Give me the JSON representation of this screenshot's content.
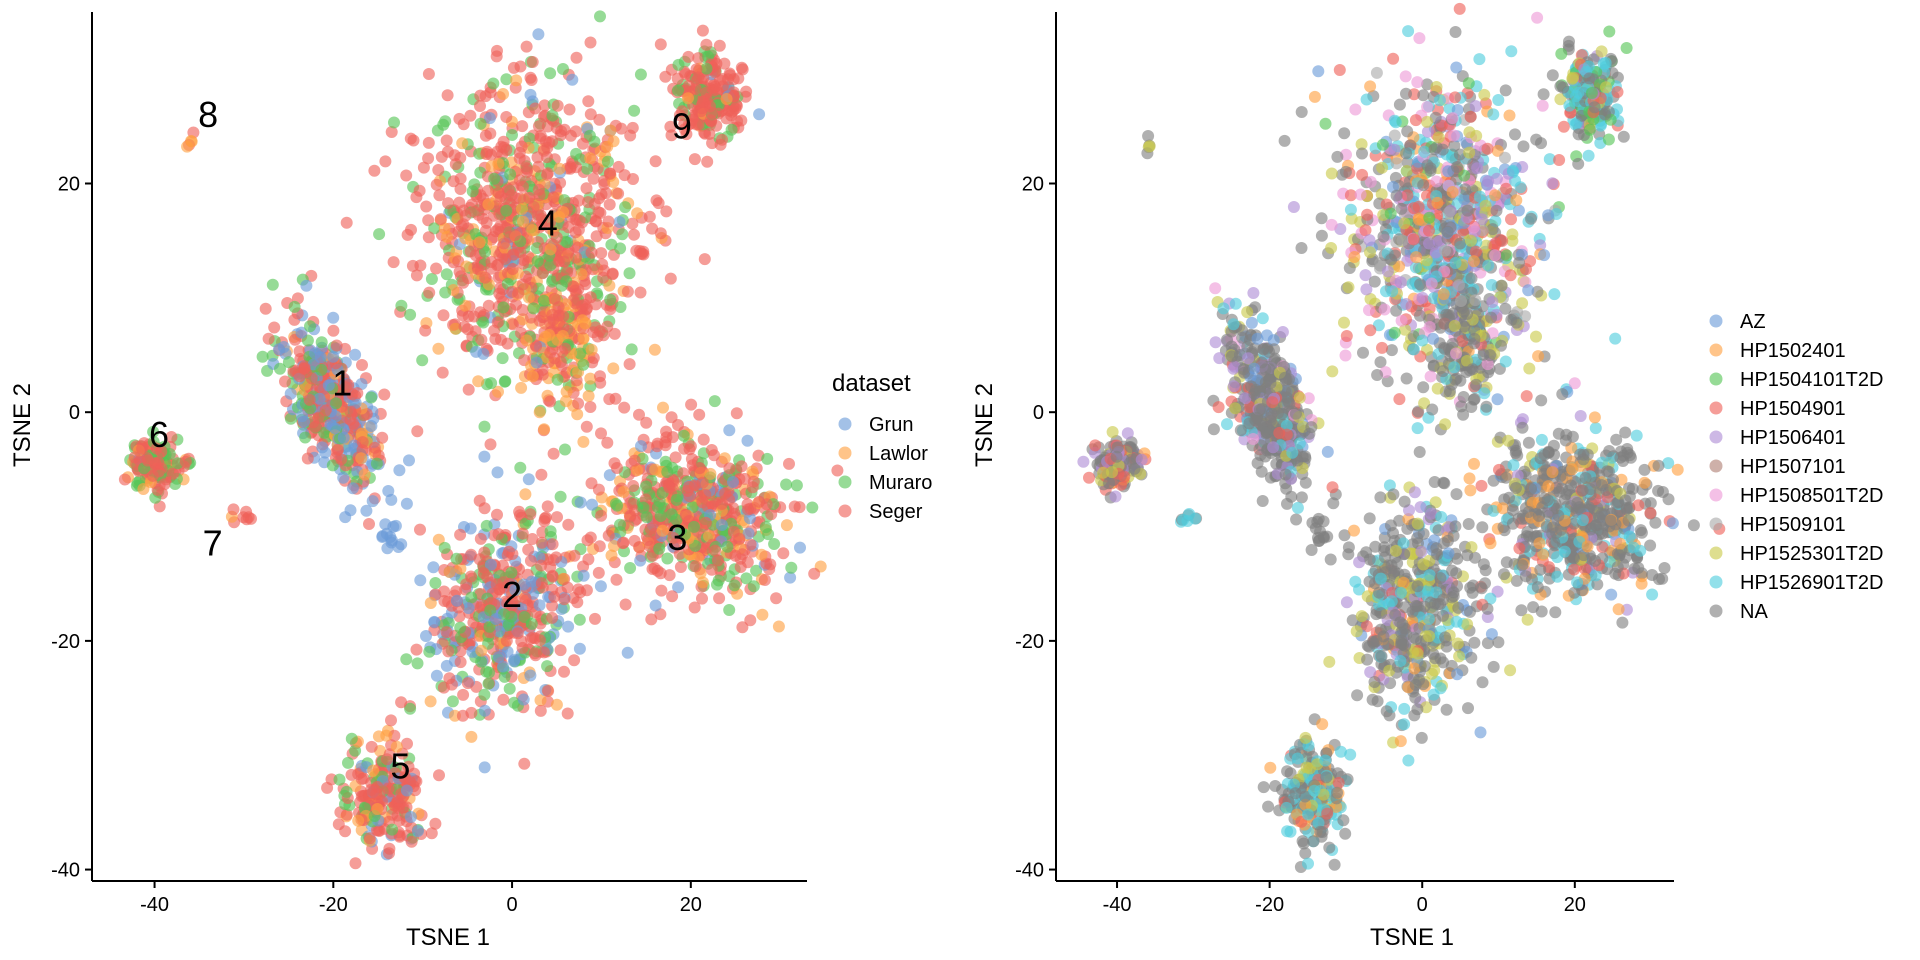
{
  "chart_data": [
    {
      "type": "scatter",
      "title": "",
      "xlabel": "TSNE 1",
      "ylabel": "TSNE 2",
      "xlim": [
        -47,
        33
      ],
      "ylim": [
        -41,
        35
      ],
      "xticks": [
        -40,
        -20,
        0,
        20
      ],
      "yticks": [
        -40,
        -20,
        0,
        20
      ],
      "grid": false,
      "legend": {
        "title": "dataset",
        "position": "right",
        "entries": [
          "Grun",
          "Lawlor",
          "Muraro",
          "Seger"
        ]
      },
      "colors": {
        "Grun": "#6A9BD8",
        "Lawlor": "#FFA040",
        "Muraro": "#55C555",
        "Seger": "#EF6158"
      },
      "cluster_labels": [
        {
          "label": "1",
          "x": -19,
          "y": 2.5
        },
        {
          "label": "2",
          "x": 0,
          "y": -16
        },
        {
          "label": "3",
          "x": 18.5,
          "y": -11
        },
        {
          "label": "4",
          "x": 4,
          "y": 16.5
        },
        {
          "label": "5",
          "x": -12.5,
          "y": -31
        },
        {
          "label": "6",
          "x": -39.5,
          "y": -2
        },
        {
          "label": "7",
          "x": -33.5,
          "y": -11.5
        },
        {
          "label": "8",
          "x": -34,
          "y": 26
        },
        {
          "label": "9",
          "x": 19,
          "y": 25
        }
      ],
      "clusters": [
        {
          "id": "1",
          "x": -20,
          "y": 0.5,
          "sx": 2.8,
          "sy": 3.6,
          "rho": -0.55,
          "n": 450,
          "mix": {
            "Grun": 0.3,
            "Lawlor": 0.08,
            "Muraro": 0.2,
            "Seger": 0.42
          }
        },
        {
          "id": "2",
          "x": -1,
          "y": -17,
          "sx": 4.2,
          "sy": 4.6,
          "rho": 0.1,
          "n": 500,
          "mix": {
            "Grun": 0.22,
            "Lawlor": 0.05,
            "Muraro": 0.2,
            "Seger": 0.53
          }
        },
        {
          "id": "3",
          "x": 20,
          "y": -9,
          "sx": 5.2,
          "sy": 3.6,
          "rho": -0.1,
          "n": 600,
          "mix": {
            "Grun": 0.08,
            "Lawlor": 0.18,
            "Muraro": 0.24,
            "Seger": 0.5
          }
        },
        {
          "id": "4",
          "x": 2,
          "y": 16,
          "sx": 6.2,
          "sy": 6.2,
          "rho": 0,
          "n": 900,
          "mix": {
            "Grun": 0.04,
            "Lawlor": 0.1,
            "Muraro": 0.22,
            "Seger": 0.64
          }
        },
        {
          "id": "5",
          "x": -14.5,
          "y": -33.5,
          "sx": 2.3,
          "sy": 2.2,
          "rho": 0,
          "n": 220,
          "mix": {
            "Grun": 0.08,
            "Lawlor": 0.1,
            "Muraro": 0.17,
            "Seger": 0.65
          }
        },
        {
          "id": "6",
          "x": -40,
          "y": -4.5,
          "sx": 1.5,
          "sy": 1.1,
          "rho": 0,
          "n": 150,
          "mix": {
            "Grun": 0.03,
            "Lawlor": 0.2,
            "Muraro": 0.22,
            "Seger": 0.55
          }
        },
        {
          "id": "7",
          "x": -30.5,
          "y": -9.2,
          "sx": 0.6,
          "sy": 0.3,
          "rho": 0,
          "n": 8,
          "mix": {
            "Lawlor": 0.3,
            "Seger": 0.7
          }
        },
        {
          "id": "8",
          "x": -36,
          "y": 23.5,
          "sx": 0.3,
          "sy": 0.4,
          "rho": 0,
          "n": 5,
          "mix": {
            "Lawlor": 0.6,
            "Seger": 0.4
          }
        },
        {
          "id": "9",
          "x": 22,
          "y": 27.5,
          "sx": 1.8,
          "sy": 1.9,
          "rho": 0,
          "n": 220,
          "mix": {
            "Grun": 0.02,
            "Lawlor": 0.03,
            "Muraro": 0.2,
            "Seger": 0.75
          }
        },
        {
          "id": "tail-4",
          "x": 5,
          "y": 6,
          "sx": 2.5,
          "sy": 3,
          "rho": 0,
          "n": 140,
          "mix": {
            "Lawlor": 0.55,
            "Muraro": 0.1,
            "Seger": 0.35
          }
        },
        {
          "id": "blue-strand",
          "x": -13.5,
          "y": -11,
          "sx": 0.6,
          "sy": 0.8,
          "rho": 0,
          "n": 12,
          "mix": {
            "Grun": 1
          }
        }
      ]
    },
    {
      "type": "scatter",
      "title": "",
      "xlabel": "TSNE 1",
      "ylabel": "TSNE 2",
      "xlim": [
        -48,
        33
      ],
      "ylim": [
        -41,
        35
      ],
      "xticks": [
        -40,
        -20,
        0,
        20
      ],
      "yticks": [
        -40,
        -20,
        0,
        20
      ],
      "grid": false,
      "legend": {
        "title": "",
        "position": "right",
        "entries": [
          "AZ",
          "HP1502401",
          "HP1504101T2D",
          "HP1504901",
          "HP1506401",
          "HP1507101",
          "HP1508501T2D",
          "HP1509101",
          "HP1525301T2D",
          "HP1526901T2D",
          "NA"
        ]
      },
      "colors": {
        "AZ": "#6A9BD8",
        "HP1502401": "#FFA040",
        "HP1504101T2D": "#55C555",
        "HP1504901": "#EF6158",
        "HP1506401": "#AF8DD5",
        "HP1507101": "#B08075",
        "HP1508501T2D": "#EE9AD6",
        "HP1509101": "#A9A9A9",
        "HP1525301T2D": "#C9CA4A",
        "HP1526901T2D": "#4FCDDD",
        "NA": "#808080"
      },
      "clusters": [
        {
          "id": "1",
          "x": -20,
          "y": 0.5,
          "sx": 2.8,
          "sy": 3.6,
          "rho": -0.55,
          "n": 450,
          "mix": {
            "NA": 0.62,
            "HP1506401": 0.12,
            "HP1525301T2D": 0.08,
            "HP1504901": 0.06,
            "HP1526901T2D": 0.05,
            "AZ": 0.04,
            "HP1508501T2D": 0.03
          }
        },
        {
          "id": "2",
          "x": -1,
          "y": -17,
          "sx": 4.2,
          "sy": 4.6,
          "rho": 0.1,
          "n": 500,
          "mix": {
            "NA": 0.55,
            "HP1525301T2D": 0.14,
            "HP1526901T2D": 0.1,
            "HP1506401": 0.08,
            "HP1502401": 0.05,
            "HP1504901": 0.04,
            "AZ": 0.04
          }
        },
        {
          "id": "3",
          "x": 20,
          "y": -9,
          "sx": 5.2,
          "sy": 3.6,
          "rho": -0.1,
          "n": 600,
          "mix": {
            "NA": 0.6,
            "HP1526901T2D": 0.12,
            "HP1502401": 0.1,
            "HP1504901": 0.07,
            "HP1506401": 0.05,
            "HP1525301T2D": 0.04,
            "AZ": 0.02
          }
        },
        {
          "id": "4",
          "x": 2,
          "y": 16,
          "sx": 6.2,
          "sy": 6.2,
          "rho": 0,
          "n": 900,
          "mix": {
            "NA": 0.28,
            "HP1526901T2D": 0.14,
            "HP1504901": 0.12,
            "HP1508501T2D": 0.1,
            "HP1525301T2D": 0.1,
            "HP1506401": 0.08,
            "HP1502401": 0.07,
            "AZ": 0.05,
            "HP1509101": 0.04,
            "HP1504101T2D": 0.02
          }
        },
        {
          "id": "5",
          "x": -14.5,
          "y": -33.5,
          "sx": 2.3,
          "sy": 2.2,
          "rho": 0,
          "n": 220,
          "mix": {
            "NA": 0.45,
            "HP1526901T2D": 0.3,
            "HP1502401": 0.1,
            "HP1525301T2D": 0.08,
            "HP1504901": 0.07
          }
        },
        {
          "id": "6",
          "x": -40,
          "y": -4.5,
          "sx": 1.5,
          "sy": 1.1,
          "rho": 0,
          "n": 150,
          "mix": {
            "NA": 0.5,
            "HP1504901": 0.2,
            "HP1506401": 0.12,
            "HP1525301T2D": 0.1,
            "HP1502401": 0.08
          }
        },
        {
          "id": "7",
          "x": -30.5,
          "y": -9.2,
          "sx": 0.6,
          "sy": 0.3,
          "rho": 0,
          "n": 8,
          "mix": {
            "NA": 0.6,
            "HP1526901T2D": 0.4
          }
        },
        {
          "id": "8",
          "x": -36,
          "y": 23.5,
          "sx": 0.3,
          "sy": 0.4,
          "rho": 0,
          "n": 5,
          "mix": {
            "NA": 0.6,
            "HP1525301T2D": 0.4
          }
        },
        {
          "id": "9",
          "x": 22,
          "y": 27.5,
          "sx": 1.8,
          "sy": 1.9,
          "rho": 0,
          "n": 220,
          "mix": {
            "NA": 0.3,
            "HP1526901T2D": 0.3,
            "HP1504101T2D": 0.15,
            "HP1504901": 0.1,
            "HP1525301T2D": 0.1,
            "HP1506401": 0.05
          }
        },
        {
          "id": "tail-4",
          "x": 5,
          "y": 6,
          "sx": 2.5,
          "sy": 3,
          "rho": 0,
          "n": 140,
          "mix": {
            "NA": 0.7,
            "HP1525301T2D": 0.15,
            "HP1526901T2D": 0.15
          }
        },
        {
          "id": "blue-strand",
          "x": -13.5,
          "y": -11,
          "sx": 0.6,
          "sy": 0.8,
          "rho": 0,
          "n": 12,
          "mix": {
            "NA": 1
          }
        }
      ]
    }
  ]
}
